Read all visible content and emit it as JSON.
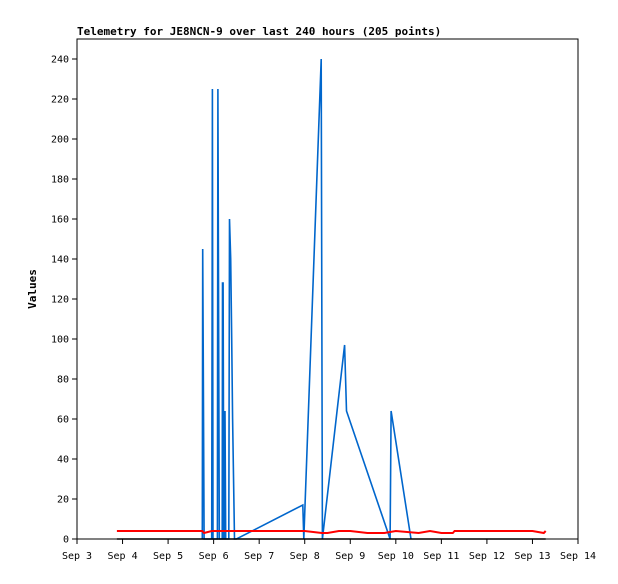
{
  "chart_data": {
    "type": "line",
    "title": "Telemetry for JE8NCN-9 over last 240 hours (205 points)",
    "xlabel": "",
    "ylabel": "Values",
    "xlim": [
      "2024-09-03",
      "2024-09-14"
    ],
    "ylim": [
      0,
      250
    ],
    "x_ticks": [
      "Sep 3",
      "Sep 4",
      "Sep 5",
      "Sep 6",
      "Sep 7",
      "Sep 8",
      "Sep 9",
      "Sep 10",
      "Sep 11",
      "Sep 12",
      "Sep 13",
      "Sep 14"
    ],
    "y_ticks": [
      0,
      20,
      40,
      60,
      80,
      100,
      120,
      140,
      160,
      180,
      200,
      220,
      240
    ],
    "grid": false,
    "legend": "none",
    "series": [
      {
        "color": "#0066cc",
        "points": [
          [
            "2024-09-05T18:00",
            0
          ],
          [
            "2024-09-05T18:15",
            145
          ],
          [
            "2024-09-05T18:30",
            97
          ],
          [
            "2024-09-05T19:00",
            0
          ],
          [
            "2024-09-05T23:00",
            0
          ],
          [
            "2024-09-05T23:10",
            112
          ],
          [
            "2024-09-05T23:20",
            225
          ],
          [
            "2024-09-05T23:40",
            0
          ],
          [
            "2024-09-06T02:00",
            0
          ],
          [
            "2024-09-06T02:15",
            225
          ],
          [
            "2024-09-06T02:30",
            145
          ],
          [
            "2024-09-06T03:00",
            0
          ],
          [
            "2024-09-06T04:30",
            0
          ],
          [
            "2024-09-06T04:40",
            128
          ],
          [
            "2024-09-06T05:00",
            128
          ],
          [
            "2024-09-06T05:20",
            0
          ],
          [
            "2024-09-06T05:40",
            0
          ],
          [
            "2024-09-06T06:00",
            64
          ],
          [
            "2024-09-06T06:20",
            0
          ],
          [
            "2024-09-06T08:00",
            0
          ],
          [
            "2024-09-06T08:20",
            160
          ],
          [
            "2024-09-06T09:00",
            140
          ],
          [
            "2024-09-06T09:30",
            100
          ],
          [
            "2024-09-06T10:00",
            60
          ],
          [
            "2024-09-06T11:00",
            0
          ],
          [
            "2024-09-06T12:00",
            0
          ],
          [
            "2024-09-07T23:00",
            17
          ],
          [
            "2024-09-07T23:30",
            0
          ],
          [
            "2024-09-08T08:40",
            240
          ],
          [
            "2024-09-08T09:00",
            120
          ],
          [
            "2024-09-08T09:20",
            0
          ],
          [
            "2024-09-08T21:00",
            97
          ],
          [
            "2024-09-08T22:00",
            64
          ],
          [
            "2024-09-09T21:00",
            0
          ],
          [
            "2024-09-09T21:30",
            64
          ],
          [
            "2024-09-10T08:00",
            0
          ]
        ]
      },
      {
        "color": "#ff0000",
        "points": [
          [
            "2024-09-03T21:00",
            4
          ],
          [
            "2024-09-05T00:00",
            4
          ],
          [
            "2024-09-05T18:00",
            4
          ],
          [
            "2024-09-05T19:00",
            3
          ],
          [
            "2024-09-05T23:00",
            4
          ],
          [
            "2024-09-06T06:00",
            4
          ],
          [
            "2024-09-06T12:00",
            4
          ],
          [
            "2024-09-07T12:00",
            4
          ],
          [
            "2024-09-08T00:00",
            4
          ],
          [
            "2024-09-08T09:00",
            3
          ],
          [
            "2024-09-08T12:00",
            3
          ],
          [
            "2024-09-08T18:00",
            4
          ],
          [
            "2024-09-09T00:00",
            4
          ],
          [
            "2024-09-09T09:00",
            3
          ],
          [
            "2024-09-09T18:00",
            3
          ],
          [
            "2024-09-10T00:00",
            4
          ],
          [
            "2024-09-10T12:00",
            3
          ],
          [
            "2024-09-10T18:00",
            4
          ],
          [
            "2024-09-11T00:00",
            3
          ],
          [
            "2024-09-11T06:00",
            3
          ],
          [
            "2024-09-11T07:00",
            4
          ],
          [
            "2024-09-12T00:00",
            4
          ],
          [
            "2024-09-13T00:00",
            4
          ],
          [
            "2024-09-13T06:00",
            3
          ],
          [
            "2024-09-13T07:00",
            4
          ]
        ]
      },
      {
        "color": "#000000",
        "points": [
          [
            "2024-09-03T21:00",
            0
          ],
          [
            "2024-09-13T07:00",
            0
          ]
        ]
      }
    ]
  }
}
